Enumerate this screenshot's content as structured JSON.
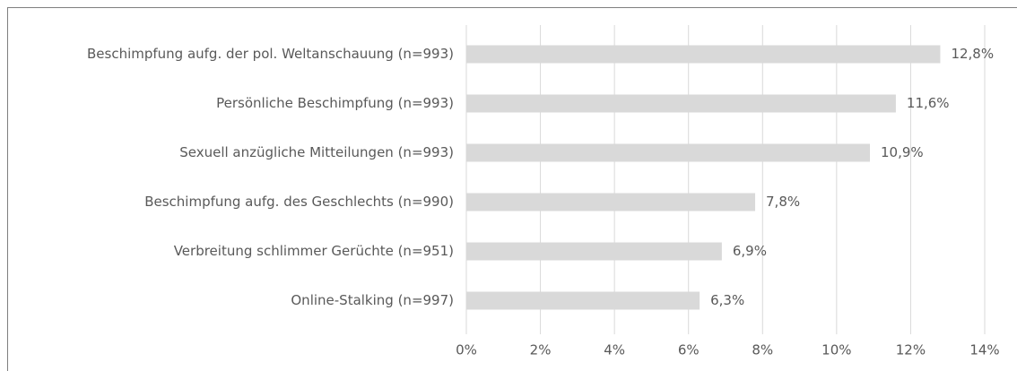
{
  "chart_data": {
    "type": "bar",
    "orientation": "horizontal",
    "categories": [
      "Beschimpfung aufg. der pol. Weltanschauung (n=993)",
      "Persönliche Beschimpfung (n=993)",
      "Sexuell anzügliche Mitteilungen (n=993)",
      "Beschimpfung aufg. des Geschlechts (n=990)",
      "Verbreitung schlimmer Gerüchte (n=951)",
      "Online-Stalking (n=997)"
    ],
    "values": [
      12.8,
      11.6,
      10.9,
      7.8,
      6.9,
      6.3
    ],
    "value_labels": [
      "12,8%",
      "11,6%",
      "10,9%",
      "7,8%",
      "6,9%",
      "6,3%"
    ],
    "color": "#d9d9d9",
    "xlim": [
      0,
      14
    ],
    "xticks": [
      {
        "value": 0,
        "label": "0%"
      },
      {
        "value": 2,
        "label": "2%"
      },
      {
        "value": 4,
        "label": "4%"
      },
      {
        "value": 6,
        "label": "6%"
      },
      {
        "value": 8,
        "label": "8%"
      },
      {
        "value": 10,
        "label": "10%"
      },
      {
        "value": 12,
        "label": "12%"
      },
      {
        "value": 14,
        "label": "14%"
      }
    ],
    "grid": true
  }
}
